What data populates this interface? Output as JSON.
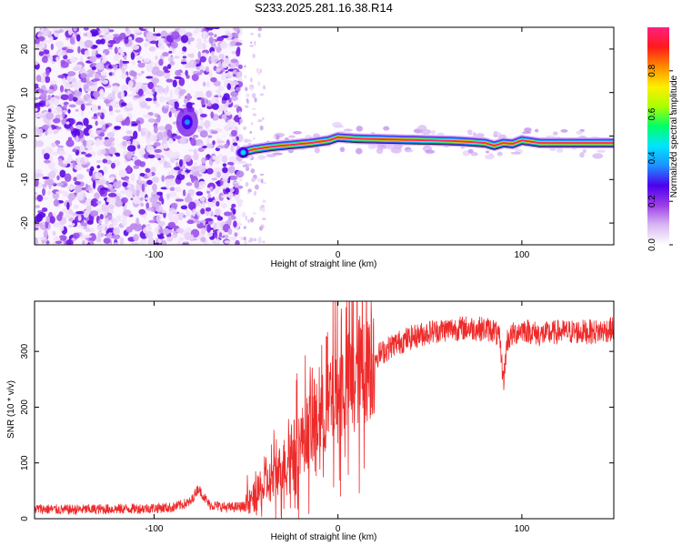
{
  "title": "S233.2025.281.16.38.R14",
  "chart_data": [
    {
      "type": "heatmap",
      "panel": "spectrogram",
      "xlabel": "Height of straight line (km)",
      "ylabel": "Frequency (Hz)",
      "xlim": [
        -165,
        150
      ],
      "ylim": [
        -25,
        25
      ],
      "x_ticks": [
        -100,
        0,
        100
      ],
      "x_tick_labels": [
        "-100",
        "0",
        "100"
      ],
      "y_ticks": [
        -20,
        -10,
        0,
        10,
        20
      ],
      "y_tick_labels": [
        "-20",
        "-10",
        "0",
        "10",
        "20"
      ],
      "noise_region_x": [
        -165,
        -53
      ],
      "sparse_noise_x": [
        -53,
        -40
      ],
      "signal_ridge": {
        "x": [
          -53,
          -45,
          -35,
          -25,
          -15,
          -5,
          0,
          10,
          20,
          30,
          40,
          50,
          60,
          70,
          80,
          85,
          90,
          95,
          100,
          110,
          120,
          130,
          150
        ],
        "frequency": [
          -3.8,
          -3.0,
          -2.4,
          -2.0,
          -1.6,
          -1.0,
          -0.3,
          -0.6,
          -0.7,
          -0.8,
          -0.9,
          -1.0,
          -1.1,
          -1.3,
          -1.6,
          -2.2,
          -1.6,
          -1.8,
          -1.0,
          -1.6,
          -1.6,
          -1.6,
          -1.6
        ]
      },
      "artifact_blob": {
        "x": -82,
        "frequency": 3.2
      },
      "colorbar": {
        "label": "Normalized spectral amplitude",
        "range": [
          0,
          1
        ],
        "ticks": [
          0.0,
          0.2,
          0.4,
          0.6,
          0.8
        ],
        "tick_labels": [
          "0.0",
          "0.2",
          "0.4",
          "0.6",
          "0.8"
        ],
        "colors": [
          "#ffffff",
          "#d9b8f2",
          "#9b3fe6",
          "#4b00ee",
          "#1e90ff",
          "#00e5ff",
          "#00ff66",
          "#aaff00",
          "#ffee00",
          "#ff8c00",
          "#ff1a1a",
          "#ff2080"
        ]
      }
    },
    {
      "type": "line",
      "panel": "snr",
      "xlabel": "Height of straight line (km)",
      "ylabel": "SNR (10 * v/v)",
      "xlim": [
        -165,
        150
      ],
      "ylim": [
        0,
        390
      ],
      "x_ticks": [
        -100,
        0,
        100
      ],
      "x_tick_labels": [
        "-100",
        "0",
        "100"
      ],
      "y_ticks": [
        0,
        100,
        200,
        300
      ],
      "y_tick_labels": [
        "0",
        "100",
        "200",
        "300"
      ],
      "line_color": "#ee2a2a",
      "series": [
        {
          "name": "SNR",
          "x": [
            -165,
            -150,
            -130,
            -110,
            -90,
            -80,
            -76,
            -70,
            -60,
            -50,
            -45,
            -40,
            -35,
            -30,
            -25,
            -20,
            -15,
            -10,
            -5,
            0,
            5,
            10,
            15,
            20,
            25,
            30,
            40,
            50,
            60,
            70,
            80,
            85,
            88,
            90,
            92,
            95,
            100,
            110,
            120,
            130,
            140,
            150
          ],
          "value": [
            18,
            16,
            17,
            18,
            20,
            30,
            55,
            25,
            20,
            22,
            40,
            55,
            75,
            95,
            120,
            140,
            160,
            180,
            200,
            225,
            240,
            260,
            275,
            290,
            300,
            312,
            325,
            335,
            340,
            342,
            340,
            338,
            320,
            245,
            320,
            330,
            340,
            330,
            335,
            335,
            335,
            340
          ]
        }
      ]
    }
  ]
}
